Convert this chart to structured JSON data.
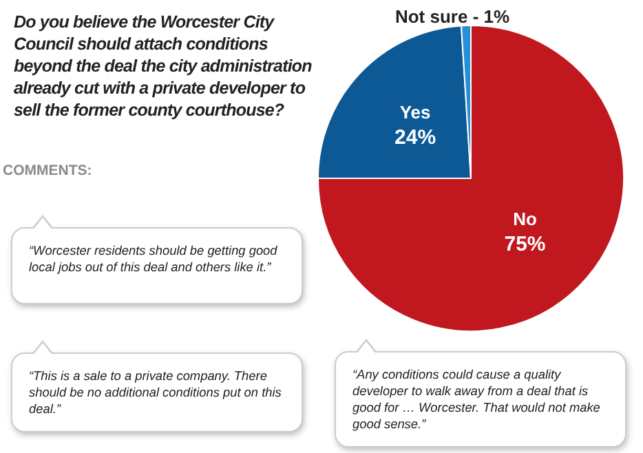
{
  "chart_data": {
    "type": "pie",
    "title": "Do you believe the Worcester City Council should attach conditions beyond the deal the city administration already cut with a private developer to sell the former county courthouse?",
    "subtitle": "COMMENTS:",
    "categories": [
      "No",
      "Yes",
      "Not sure"
    ],
    "values": [
      75,
      24,
      1
    ],
    "colors": [
      "#c1171f",
      "#0d5996",
      "#2590d6"
    ],
    "value_labels": [
      "75%",
      "24%",
      "1%"
    ],
    "legend": false,
    "annotations": [
      "“Worcester residents should be getting good local jobs out of this deal and others like it.”",
      "“This is a sale to a private company. There should be no additional conditions put on this deal.”",
      "“Any conditions could cause a quality developer to walk away from a deal that is good for … Worcester. That would not make good sense.”"
    ]
  }
}
